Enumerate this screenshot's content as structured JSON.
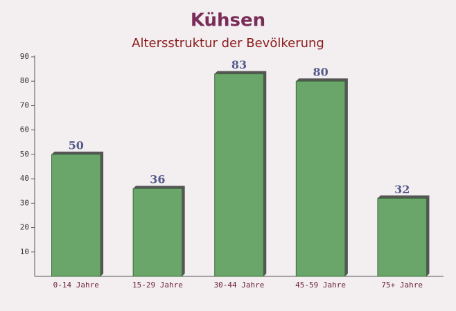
{
  "chart_data": {
    "type": "bar",
    "title": "Kühsen",
    "subtitle": "Altersstruktur der Bevölkerung",
    "categories": [
      "0-14 Jahre",
      "15-29 Jahre",
      "30-44 Jahre",
      "45-59 Jahre",
      "75+ Jahre"
    ],
    "values": [
      50,
      36,
      83,
      80,
      32
    ],
    "color": "#6aa56a",
    "ylim": [
      0,
      90
    ],
    "yticks": [
      10,
      20,
      30,
      40,
      50,
      60,
      70,
      80,
      90
    ],
    "grid": false
  }
}
